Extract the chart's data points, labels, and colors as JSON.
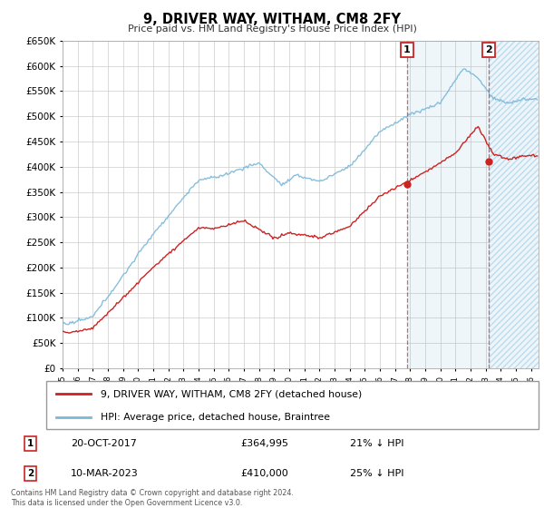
{
  "title": "9, DRIVER WAY, WITHAM, CM8 2FY",
  "subtitle": "Price paid vs. HM Land Registry's House Price Index (HPI)",
  "footer": "Contains HM Land Registry data © Crown copyright and database right 2024.\nThis data is licensed under the Open Government Licence v3.0.",
  "legend_label_red": "9, DRIVER WAY, WITHAM, CM8 2FY (detached house)",
  "legend_label_blue": "HPI: Average price, detached house, Braintree",
  "annotation1_label": "1",
  "annotation1_date": "20-OCT-2017",
  "annotation1_price": "£364,995",
  "annotation1_hpi": "21% ↓ HPI",
  "annotation2_label": "2",
  "annotation2_date": "10-MAR-2023",
  "annotation2_price": "£410,000",
  "annotation2_hpi": "25% ↓ HPI",
  "ylim_min": 0,
  "ylim_max": 650000,
  "hpi_color": "#7ab8d9",
  "price_color": "#cc2222",
  "vline1_year": 2017.8,
  "vline2_year": 2023.2,
  "marker1_value": 364995,
  "marker2_value": 410000
}
